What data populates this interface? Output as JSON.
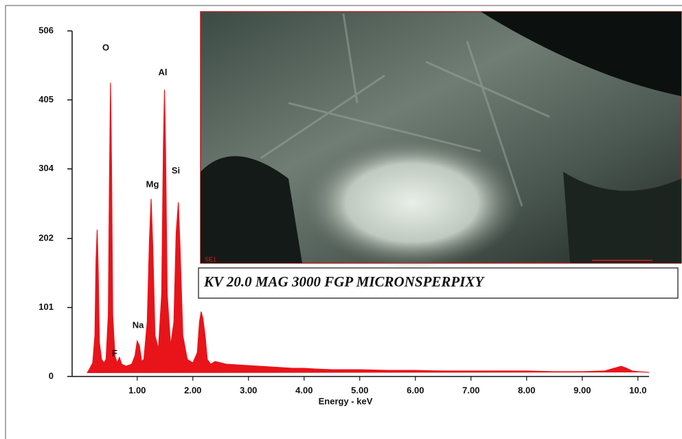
{
  "chart_data": {
    "type": "spectrum",
    "x_label": "Energy - keV",
    "color": "#e8141a",
    "xlim": [
      -0.17,
      10.2
    ],
    "ylim": [
      0,
      506
    ],
    "yticks": [
      0,
      101,
      202,
      304,
      405,
      506
    ],
    "xticks": [
      {
        "value": 1,
        "label": "1.00"
      },
      {
        "value": 2,
        "label": "2.00"
      },
      {
        "value": 3,
        "label": "3.00"
      },
      {
        "value": 4,
        "label": "4.00"
      },
      {
        "value": 5,
        "label": "5.00"
      },
      {
        "value": 6,
        "label": "6.00"
      },
      {
        "value": 7,
        "label": "7.00"
      },
      {
        "value": 8,
        "label": "8.00"
      },
      {
        "value": 9,
        "label": "9.00"
      },
      {
        "value": 10,
        "label": "10.0"
      }
    ],
    "x": [
      0.1,
      0.15,
      0.2,
      0.24,
      0.26,
      0.28,
      0.3,
      0.32,
      0.36,
      0.4,
      0.44,
      0.48,
      0.5,
      0.52,
      0.54,
      0.56,
      0.6,
      0.64,
      0.68,
      0.72,
      0.8,
      0.9,
      0.96,
      1.0,
      1.04,
      1.08,
      1.12,
      1.18,
      1.22,
      1.25,
      1.28,
      1.32,
      1.38,
      1.44,
      1.47,
      1.49,
      1.51,
      1.54,
      1.6,
      1.66,
      1.7,
      1.74,
      1.77,
      1.82,
      1.9,
      2.0,
      2.08,
      2.12,
      2.15,
      2.18,
      2.22,
      2.26,
      2.32,
      2.4,
      2.5,
      2.6,
      2.8,
      3.0,
      3.2,
      3.4,
      3.6,
      3.8,
      4.0,
      4.2,
      4.5,
      5.0,
      5.5,
      6.0,
      6.5,
      7.0,
      7.5,
      8.0,
      8.5,
      9.0,
      9.4,
      9.7,
      9.8,
      9.9,
      10.0,
      10.2
    ],
    "values": [
      5,
      12,
      20,
      60,
      170,
      215,
      150,
      50,
      25,
      20,
      25,
      90,
      280,
      430,
      300,
      90,
      30,
      20,
      28,
      18,
      15,
      18,
      30,
      52,
      45,
      22,
      25,
      80,
      200,
      260,
      190,
      60,
      40,
      120,
      330,
      420,
      330,
      120,
      45,
      80,
      210,
      255,
      190,
      60,
      25,
      20,
      35,
      80,
      95,
      85,
      60,
      25,
      18,
      22,
      20,
      18,
      17,
      16,
      15,
      14,
      13,
      12,
      12,
      11,
      10,
      10,
      9,
      9,
      8,
      8,
      8,
      8,
      7,
      7,
      8,
      15,
      12,
      8,
      7,
      6
    ],
    "annotations": [
      "O",
      "Al",
      "Si",
      "Mg",
      "Na",
      "F"
    ],
    "image_label": "SE1",
    "caption": "KV 20.0   MAG 3000   FGP   MICRONSPERPIXY"
  }
}
